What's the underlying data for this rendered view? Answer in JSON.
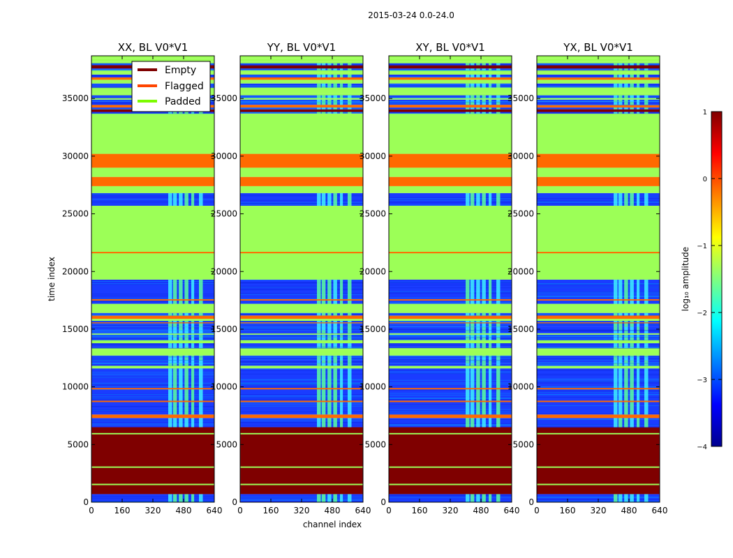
{
  "chart_data": {
    "type": "heatmap",
    "suptitle": "2015-03-24 0.0-24.0",
    "xlabel": "channel index",
    "ylabel": "time index",
    "xlim": [
      0,
      640
    ],
    "ylim": [
      0,
      38700
    ],
    "xticks": [
      0,
      160,
      320,
      480,
      640
    ],
    "yticks": [
      0,
      5000,
      10000,
      15000,
      20000,
      25000,
      30000,
      35000
    ],
    "panels": [
      {
        "title": "XX, BL V0*V1"
      },
      {
        "title": "YY, BL V0*V1"
      },
      {
        "title": "XY, BL V0*V1"
      },
      {
        "title": "YX, BL V0*V1"
      }
    ],
    "legend": {
      "placement": "top (first panel)",
      "entries": [
        {
          "label": "Empty",
          "color": "#7f0000"
        },
        {
          "label": "Flagged",
          "color": "#ff4500"
        },
        {
          "label": "Padded",
          "color": "#7cfc00"
        }
      ]
    },
    "colorbar": {
      "label": "log₁₀ amplitude",
      "range": [
        -4,
        1
      ],
      "ticks": [
        1,
        0,
        -1,
        -2,
        -3,
        -4
      ],
      "tick_labels": [
        "1",
        "0",
        "−1",
        "−2",
        "−3",
        "−4"
      ],
      "colormap": "jet"
    },
    "row_bands": [
      {
        "t0": 0,
        "t1": 700,
        "kind": "data"
      },
      {
        "t0": 700,
        "t1": 6500,
        "kind": "empty"
      },
      {
        "t0": 6500,
        "t1": 7300,
        "kind": "data"
      },
      {
        "t0": 7300,
        "t1": 7600,
        "kind": "flagged"
      },
      {
        "t0": 7600,
        "t1": 11600,
        "kind": "data"
      },
      {
        "t0": 11600,
        "t1": 16400,
        "kind": "mixed"
      },
      {
        "t0": 16400,
        "t1": 17200,
        "kind": "padded"
      },
      {
        "t0": 17200,
        "t1": 19300,
        "kind": "data"
      },
      {
        "t0": 19300,
        "t1": 25700,
        "kind": "padded"
      },
      {
        "t0": 25700,
        "t1": 26800,
        "kind": "data"
      },
      {
        "t0": 26800,
        "t1": 27400,
        "kind": "padded"
      },
      {
        "t0": 27400,
        "t1": 28200,
        "kind": "flagged"
      },
      {
        "t0": 28200,
        "t1": 29000,
        "kind": "padded"
      },
      {
        "t0": 29000,
        "t1": 30200,
        "kind": "flagged"
      },
      {
        "t0": 30200,
        "t1": 33700,
        "kind": "padded"
      },
      {
        "t0": 33700,
        "t1": 38700,
        "kind": "mixed"
      }
    ]
  }
}
